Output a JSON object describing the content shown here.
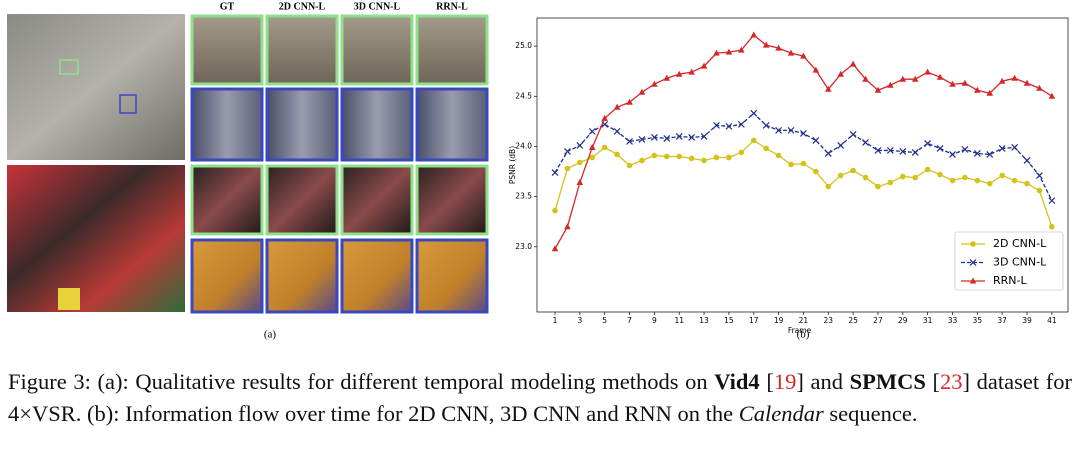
{
  "figure": {
    "column_headers": [
      "GT",
      "2D CNN-L",
      "3D CNN-L",
      "RRN-L"
    ],
    "panel_a_label": "(a)",
    "panel_b_label": "(b)",
    "caption": [
      {
        "text": "Figure 3: (a): Qualitative results for different temporal modeling methods on "
      },
      {
        "text": "Vid4",
        "style": "bold"
      },
      {
        "text": " ["
      },
      {
        "text": "19",
        "style": "cite"
      },
      {
        "text": "] and "
      },
      {
        "text": "SPMCS",
        "style": "bold"
      },
      {
        "text": " ["
      },
      {
        "text": "23",
        "style": "cite"
      },
      {
        "text": "] dataset for 4×VSR. (b): Information flow over time for 2D CNN, 3D CNN and RNN on the "
      },
      {
        "text": "Calendar",
        "style": "italic"
      },
      {
        "text": " sequence."
      }
    ]
  },
  "chart_data": {
    "type": "line",
    "xlabel": "Frame",
    "ylabel": "PSNR (dB)",
    "x": [
      1,
      2,
      3,
      4,
      5,
      6,
      7,
      8,
      9,
      10,
      11,
      12,
      13,
      14,
      15,
      16,
      17,
      18,
      19,
      20,
      21,
      22,
      23,
      24,
      25,
      26,
      27,
      28,
      29,
      30,
      31,
      32,
      33,
      34,
      35,
      36,
      37,
      38,
      39,
      40,
      41
    ],
    "series": [
      {
        "name": "2D CNN-L",
        "color": "#d4c21b",
        "marker": "circle",
        "linestyle": "solid",
        "values": [
          23.36,
          23.78,
          23.84,
          23.89,
          23.99,
          23.92,
          23.81,
          23.86,
          23.91,
          23.9,
          23.9,
          23.88,
          23.86,
          23.89,
          23.89,
          23.94,
          24.06,
          23.98,
          23.91,
          23.82,
          23.83,
          23.75,
          23.6,
          23.71,
          23.76,
          23.69,
          23.6,
          23.64,
          23.7,
          23.69,
          23.77,
          23.72,
          23.66,
          23.69,
          23.66,
          23.63,
          23.71,
          23.66,
          23.63,
          23.56,
          23.2
        ]
      },
      {
        "name": "3D CNN-L",
        "color": "#1f2f8a",
        "marker": "x",
        "linestyle": "dashed",
        "values": [
          23.74,
          23.95,
          24.01,
          24.15,
          24.22,
          24.15,
          24.05,
          24.07,
          24.09,
          24.08,
          24.1,
          24.09,
          24.1,
          24.21,
          24.2,
          24.22,
          24.33,
          24.21,
          24.16,
          24.16,
          24.13,
          24.06,
          23.93,
          24.01,
          24.12,
          24.04,
          23.96,
          23.96,
          23.95,
          23.94,
          24.03,
          23.98,
          23.92,
          23.97,
          23.93,
          23.92,
          23.98,
          23.99,
          23.86,
          23.71,
          23.46
        ]
      },
      {
        "name": "RRN-L",
        "color": "#d62728",
        "marker": "triangle",
        "linestyle": "solid",
        "values": [
          22.98,
          23.2,
          23.64,
          23.99,
          24.28,
          24.39,
          24.44,
          24.54,
          24.62,
          24.68,
          24.72,
          24.74,
          24.8,
          24.93,
          24.94,
          24.96,
          25.11,
          25.01,
          24.98,
          24.93,
          24.9,
          24.76,
          24.57,
          24.72,
          24.82,
          24.67,
          24.56,
          24.61,
          24.67,
          24.67,
          24.74,
          24.69,
          24.62,
          24.63,
          24.56,
          24.53,
          24.65,
          24.68,
          24.63,
          24.58,
          24.5
        ]
      }
    ],
    "xlim": [
      -0.45,
      42.3
    ],
    "ylim": [
      22.35,
      25.28
    ],
    "xticks": [
      1,
      3,
      5,
      7,
      9,
      11,
      13,
      15,
      17,
      19,
      21,
      23,
      25,
      27,
      29,
      31,
      33,
      35,
      37,
      39,
      41
    ],
    "yticks": [
      {
        "value": 23,
        "label": "23.0"
      },
      {
        "value": 23.5,
        "label": "23.5"
      },
      {
        "value": 24,
        "label": "24.0"
      },
      {
        "value": 24.5,
        "label": "24.5"
      },
      {
        "value": 25,
        "label": "25.0"
      }
    ],
    "legend": "lower right"
  }
}
